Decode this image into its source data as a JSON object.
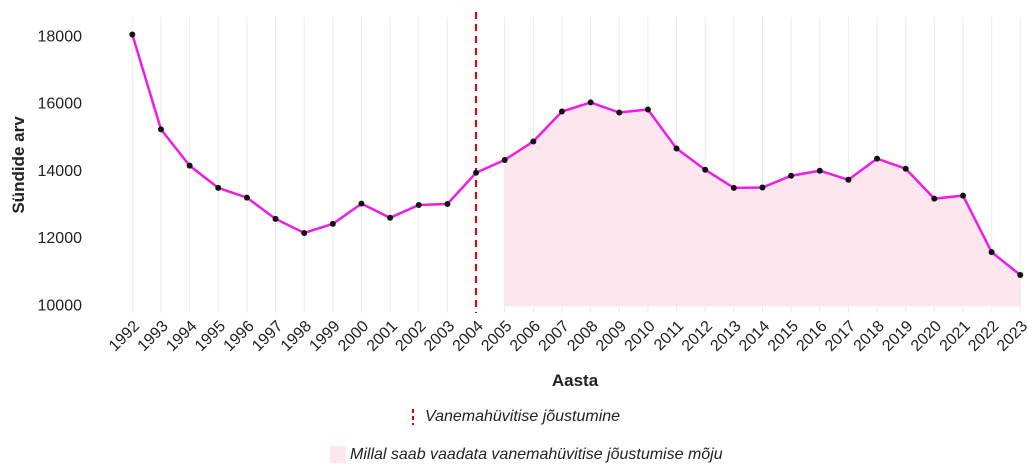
{
  "chart_data": {
    "type": "line",
    "x": [
      1992,
      1993,
      1994,
      1995,
      1996,
      1997,
      1998,
      1999,
      2000,
      2001,
      2002,
      2003,
      2004,
      2005,
      2006,
      2007,
      2008,
      2009,
      2010,
      2011,
      2012,
      2013,
      2014,
      2015,
      2016,
      2017,
      2018,
      2019,
      2020,
      2021,
      2022,
      2023
    ],
    "series": [
      {
        "name": "Sündide arv",
        "color": "#f01ce6",
        "values": [
          18080,
          15260,
          14180,
          13520,
          13230,
          12600,
          12180,
          12450,
          13050,
          12630,
          13010,
          13040,
          13970,
          14350,
          14900,
          15790,
          16060,
          15760,
          15850,
          14690,
          14060,
          13520,
          13530,
          13880,
          14030,
          13760,
          14390,
          14090,
          13200,
          13290,
          11610,
          10930
        ]
      }
    ],
    "xlim": [
      1991.5,
      2023.2
    ],
    "ylim": [
      9800,
      18600
    ],
    "yticks": [
      10000,
      12000,
      14000,
      16000,
      18000
    ],
    "x_label": "Aasta",
    "y_label": "Sündide arv",
    "vertical_line": {
      "label": "Vanemahüvitise jõustumine",
      "x": 2004,
      "color": "#e00000"
    },
    "shaded_region": {
      "label": "Millal saab vaadata vanemahüvitise jõustumise mõju",
      "x": [
        2005,
        2023
      ],
      "y0": 10000,
      "color": "#fde6ee"
    },
    "grid": true
  }
}
